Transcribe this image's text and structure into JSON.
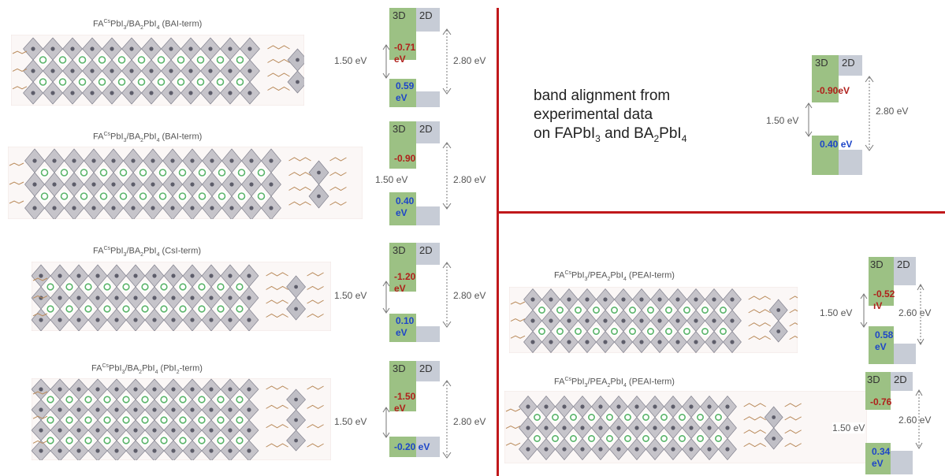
{
  "rows_left": [
    {
      "title_parts": [
        "FA",
        "Cs",
        "PbI",
        "3",
        "/BA",
        "2",
        "PbI",
        "4",
        " (BAI-term)"
      ],
      "vb_offset": [
        "-0.71",
        "eV"
      ],
      "cb_offset": [
        "0.59",
        "eV"
      ],
      "gap_3d": "1.50 eV",
      "gap_2d": "2.80 eV"
    },
    {
      "title_parts": [
        "FA",
        "Cs",
        "PbI",
        "3",
        "/BA",
        "2",
        "PbI",
        "4",
        " (BAI-term)"
      ],
      "vb_offset": [
        "-0.90",
        ""
      ],
      "cb_offset": [
        "0.40",
        "eV"
      ],
      "gap_3d": "1.50 eV",
      "gap_2d": "2.80 eV"
    },
    {
      "title_parts": [
        "FA",
        "Cs",
        "PbI",
        "3",
        "/BA",
        "2",
        "PbI",
        "4",
        " (CsI-term)"
      ],
      "vb_offset": [
        "-1.20",
        "eV"
      ],
      "cb_offset": [
        "0.10",
        "eV"
      ],
      "gap_3d": "1.50 eV",
      "gap_2d": "2.80 eV"
    },
    {
      "title_parts": [
        "FA",
        "Cs",
        "PbI",
        "3",
        "/BA",
        "2",
        "PbI",
        "4",
        " (PbI",
        "2",
        "-term)"
      ],
      "vb_offset": [
        "-1.50",
        "eV"
      ],
      "cb_offset": [
        "-0.20 eV",
        ""
      ],
      "gap_3d": "1.50 eV",
      "gap_2d": "2.80 eV"
    }
  ],
  "labels": {
    "three_d": "3D",
    "two_d": "2D"
  },
  "experimental": {
    "text_line1": "band alignment from",
    "text_line2": "experimental data",
    "text_line3_parts": [
      "on FAPbI",
      "3",
      " and BA",
      "2",
      "PbI",
      "4"
    ],
    "vb_offset": "-0.90eV",
    "cb_offset": "0.40 eV",
    "gap_3d": "1.50 eV",
    "gap_2d": "2.80 eV"
  },
  "rows_right": [
    {
      "title_parts": [
        "FA",
        "Cs",
        "PbI",
        "3",
        "/PEA",
        "2",
        "PbI",
        "4",
        " (PEAI-term)"
      ],
      "vb_offset": [
        "-0.52",
        "ıV"
      ],
      "cb_offset": [
        "0.58",
        "eV"
      ],
      "gap_3d": "1.50 eV",
      "gap_2d": "2.60 eV"
    },
    {
      "title_parts": [
        "FA",
        "Cs",
        "PbI",
        "3",
        "/PEA",
        "2",
        "PbI",
        "4",
        " (PEAI-term)"
      ],
      "vb_offset": [
        "-0.76",
        ""
      ],
      "cb_offset": [
        "0.34",
        "eV"
      ],
      "gap_3d": "1.50 eV",
      "gap_2d": "2.60 eV"
    }
  ],
  "colors": {
    "divider": "#c0181b",
    "three_d": "#9cc184",
    "two_d": "#c7ccd6",
    "vb_text": "#b0201b",
    "cb_text": "#1e46c8"
  }
}
